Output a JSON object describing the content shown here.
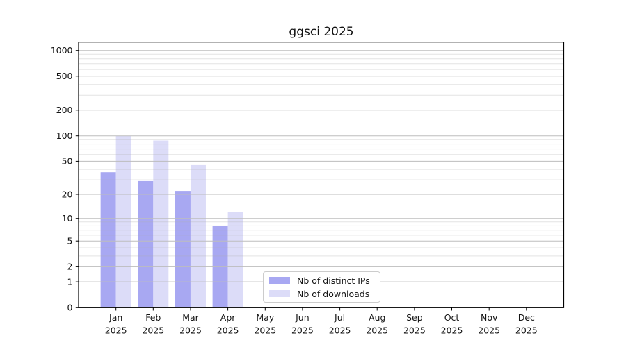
{
  "chart_data": {
    "type": "bar",
    "title": "ggsci 2025",
    "categories": [
      "Jan",
      "Feb",
      "Mar",
      "Apr",
      "May",
      "Jun",
      "Jul",
      "Aug",
      "Sep",
      "Oct",
      "Nov",
      "Dec"
    ],
    "category_year": "2025",
    "series": [
      {
        "name": "Nb of distinct IPs",
        "color": "#a8a8f2",
        "values": [
          37,
          29,
          22,
          8,
          0,
          0,
          0,
          0,
          0,
          0,
          0,
          0
        ]
      },
      {
        "name": "Nb of downloads",
        "color": "#dcdcf8",
        "values": [
          100,
          88,
          45,
          12,
          0,
          0,
          0,
          0,
          0,
          0,
          0,
          0
        ]
      }
    ],
    "y_axis": {
      "scale": "log1p",
      "max": 1000,
      "ticks": [
        0,
        1,
        2,
        5,
        10,
        20,
        50,
        100,
        200,
        500,
        1000
      ],
      "minor_ticks": [
        3,
        4,
        6,
        7,
        8,
        9,
        30,
        40,
        60,
        70,
        80,
        90,
        300,
        400,
        600,
        700,
        800,
        900
      ]
    },
    "grid": true,
    "legend_position": "bottom-center",
    "colors": {
      "major_gridline": "#bdbdbd",
      "minor_gridline": "#e9e9e9",
      "axis": "#000000",
      "text": "#141414"
    }
  }
}
